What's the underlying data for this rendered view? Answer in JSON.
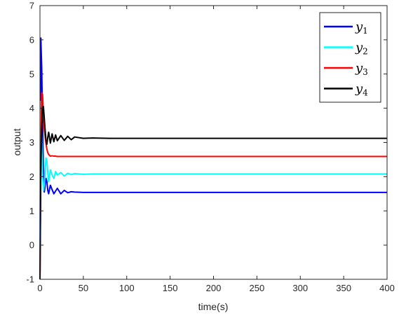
{
  "chart_data": {
    "type": "line",
    "xlabel": "time(s)",
    "ylabel": "output",
    "xlim": [
      0,
      400
    ],
    "ylim": [
      -1,
      7
    ],
    "xticks": [
      0,
      50,
      100,
      150,
      200,
      250,
      300,
      350,
      400
    ],
    "yticks": [
      -1,
      0,
      1,
      2,
      3,
      4,
      5,
      6,
      7
    ],
    "grid": false,
    "legend_position": "top-right",
    "series": [
      {
        "name": "y1",
        "color": "#0000ff",
        "x": [
          0,
          1,
          2,
          3,
          4,
          5,
          6,
          7,
          8,
          9,
          10,
          12,
          14,
          16,
          18,
          20,
          24,
          28,
          32,
          36,
          40,
          50,
          60,
          80,
          100,
          150,
          200,
          250,
          300,
          350,
          400
        ],
        "y": [
          -1.0,
          6.05,
          5.2,
          3.6,
          2.2,
          1.55,
          1.75,
          1.95,
          1.85,
          1.6,
          1.5,
          1.75,
          1.62,
          1.5,
          1.58,
          1.66,
          1.5,
          1.6,
          1.53,
          1.56,
          1.55,
          1.54,
          1.54,
          1.54,
          1.54,
          1.54,
          1.54,
          1.54,
          1.54,
          1.54,
          1.54
        ]
      },
      {
        "name": "y2",
        "color": "#00ffff",
        "x": [
          0,
          1,
          2,
          3,
          4,
          5,
          6,
          7,
          8,
          9,
          10,
          12,
          14,
          16,
          18,
          20,
          24,
          28,
          32,
          36,
          40,
          50,
          60,
          80,
          100,
          150,
          200,
          250,
          300,
          350,
          400
        ],
        "y": [
          -1.0,
          4.2,
          3.0,
          2.0,
          1.6,
          1.75,
          2.2,
          2.55,
          2.45,
          2.1,
          1.85,
          2.2,
          2.05,
          1.95,
          2.15,
          2.05,
          2.12,
          2.02,
          2.1,
          2.06,
          2.09,
          2.07,
          2.08,
          2.08,
          2.08,
          2.08,
          2.08,
          2.08,
          2.08,
          2.08,
          2.08
        ]
      },
      {
        "name": "y3",
        "color": "#ff0000",
        "x": [
          0,
          1,
          2,
          3,
          4,
          5,
          6,
          7,
          8,
          9,
          10,
          12,
          14,
          16,
          18,
          20,
          24,
          28,
          32,
          36,
          40,
          50,
          60,
          80,
          100,
          150,
          200,
          250,
          300,
          350,
          400
        ],
        "y": [
          -1.0,
          2.5,
          4.45,
          4.4,
          3.8,
          3.4,
          3.15,
          2.95,
          2.8,
          2.7,
          2.65,
          2.6,
          2.61,
          2.6,
          2.6,
          2.59,
          2.59,
          2.59,
          2.59,
          2.59,
          2.59,
          2.59,
          2.59,
          2.59,
          2.59,
          2.59,
          2.59,
          2.59,
          2.59,
          2.59,
          2.59
        ]
      },
      {
        "name": "y4",
        "color": "#000000",
        "x": [
          0,
          1,
          2,
          3,
          4,
          5,
          6,
          7,
          8,
          9,
          10,
          12,
          14,
          16,
          18,
          20,
          24,
          28,
          32,
          36,
          40,
          50,
          60,
          80,
          100,
          150,
          200,
          250,
          300,
          350,
          400
        ],
        "y": [
          -1.0,
          2.2,
          3.4,
          4.0,
          4.05,
          3.7,
          3.35,
          3.05,
          2.95,
          3.15,
          3.3,
          2.98,
          3.25,
          3.02,
          3.22,
          3.05,
          3.2,
          3.06,
          3.18,
          3.08,
          3.16,
          3.12,
          3.13,
          3.12,
          3.12,
          3.12,
          3.12,
          3.12,
          3.12,
          3.12,
          3.12
        ]
      }
    ],
    "legend": [
      {
        "base": "y",
        "sub": "1",
        "color": "#0000ff"
      },
      {
        "base": "y",
        "sub": "2",
        "color": "#00ffff"
      },
      {
        "base": "y",
        "sub": "3",
        "color": "#ff0000"
      },
      {
        "base": "y",
        "sub": "4",
        "color": "#000000"
      }
    ]
  }
}
